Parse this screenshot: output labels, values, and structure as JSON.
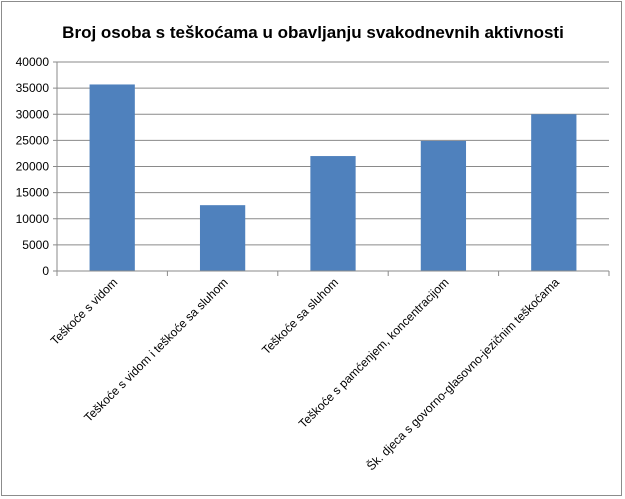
{
  "chart_data": {
    "type": "bar",
    "title": "Broj osoba s teškoćama u obavljanju svakodnevnih aktivnosti",
    "categories": [
      "Teškoće s vidom",
      "Teškoće s vidom i teškoće sa sluhom",
      "Teškoće sa sluhom",
      "Teškoće s pamćenjem, koncentracijom",
      "Šk. djeca s govorno-glasovno-jezičnim teškoćama"
    ],
    "values": [
      35700,
      12600,
      22000,
      24900,
      30000
    ],
    "ylim": [
      0,
      40000
    ],
    "yticks": [
      "0",
      "5000",
      "10000",
      "15000",
      "20000",
      "25000",
      "30000",
      "35000",
      "40000"
    ],
    "grid": true,
    "legend": "none",
    "bar_color": "#4f81bd"
  }
}
